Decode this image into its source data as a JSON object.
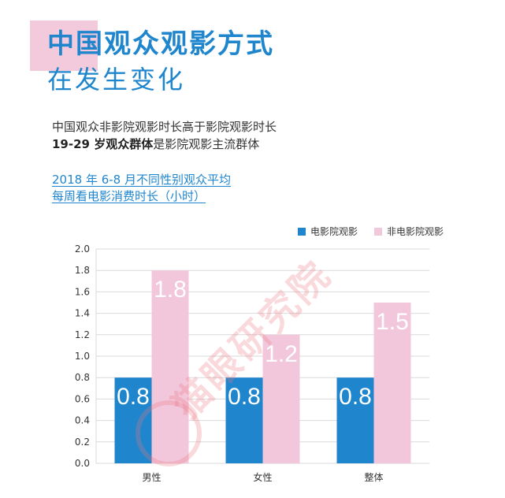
{
  "header": {
    "title_line1": "中国观众观影方式",
    "title_line2": "在发生变化"
  },
  "description": {
    "line1": "中国观众非影院观影时长高于影院观影时长",
    "line2_bold": "19-29 岁观众群体",
    "line2_rest": "是影院观影主流群体"
  },
  "subtitle": {
    "line1": "2018 年 6-8 月不同性别观众平均",
    "line2": "每周看电影消费时长（小时）"
  },
  "watermark": {
    "text": "猫眼研究院"
  },
  "colors": {
    "cinema": "#1f86cd",
    "noncinema": "#f2c7dc",
    "title": "#1f86cd",
    "grid": "#d9d9d9"
  },
  "chart_data": {
    "type": "bar",
    "categories": [
      "男性",
      "女性",
      "整体"
    ],
    "series": [
      {
        "name": "电影院观影",
        "values": [
          0.8,
          0.8,
          0.8
        ],
        "labels": [
          "0.8",
          "0.8",
          "0.8"
        ]
      },
      {
        "name": "非电影院观影",
        "values": [
          1.8,
          1.2,
          1.5
        ],
        "labels": [
          "1.8",
          "1.2",
          "1.5"
        ]
      }
    ],
    "yticks": [
      "0.0",
      "0.2",
      "0.4",
      "0.6",
      "0.8",
      "1.0",
      "1.2",
      "1.4",
      "1.6",
      "1.8",
      "2.0"
    ],
    "ylim": [
      0,
      2.0
    ],
    "grid": true,
    "legend": "top-right"
  }
}
